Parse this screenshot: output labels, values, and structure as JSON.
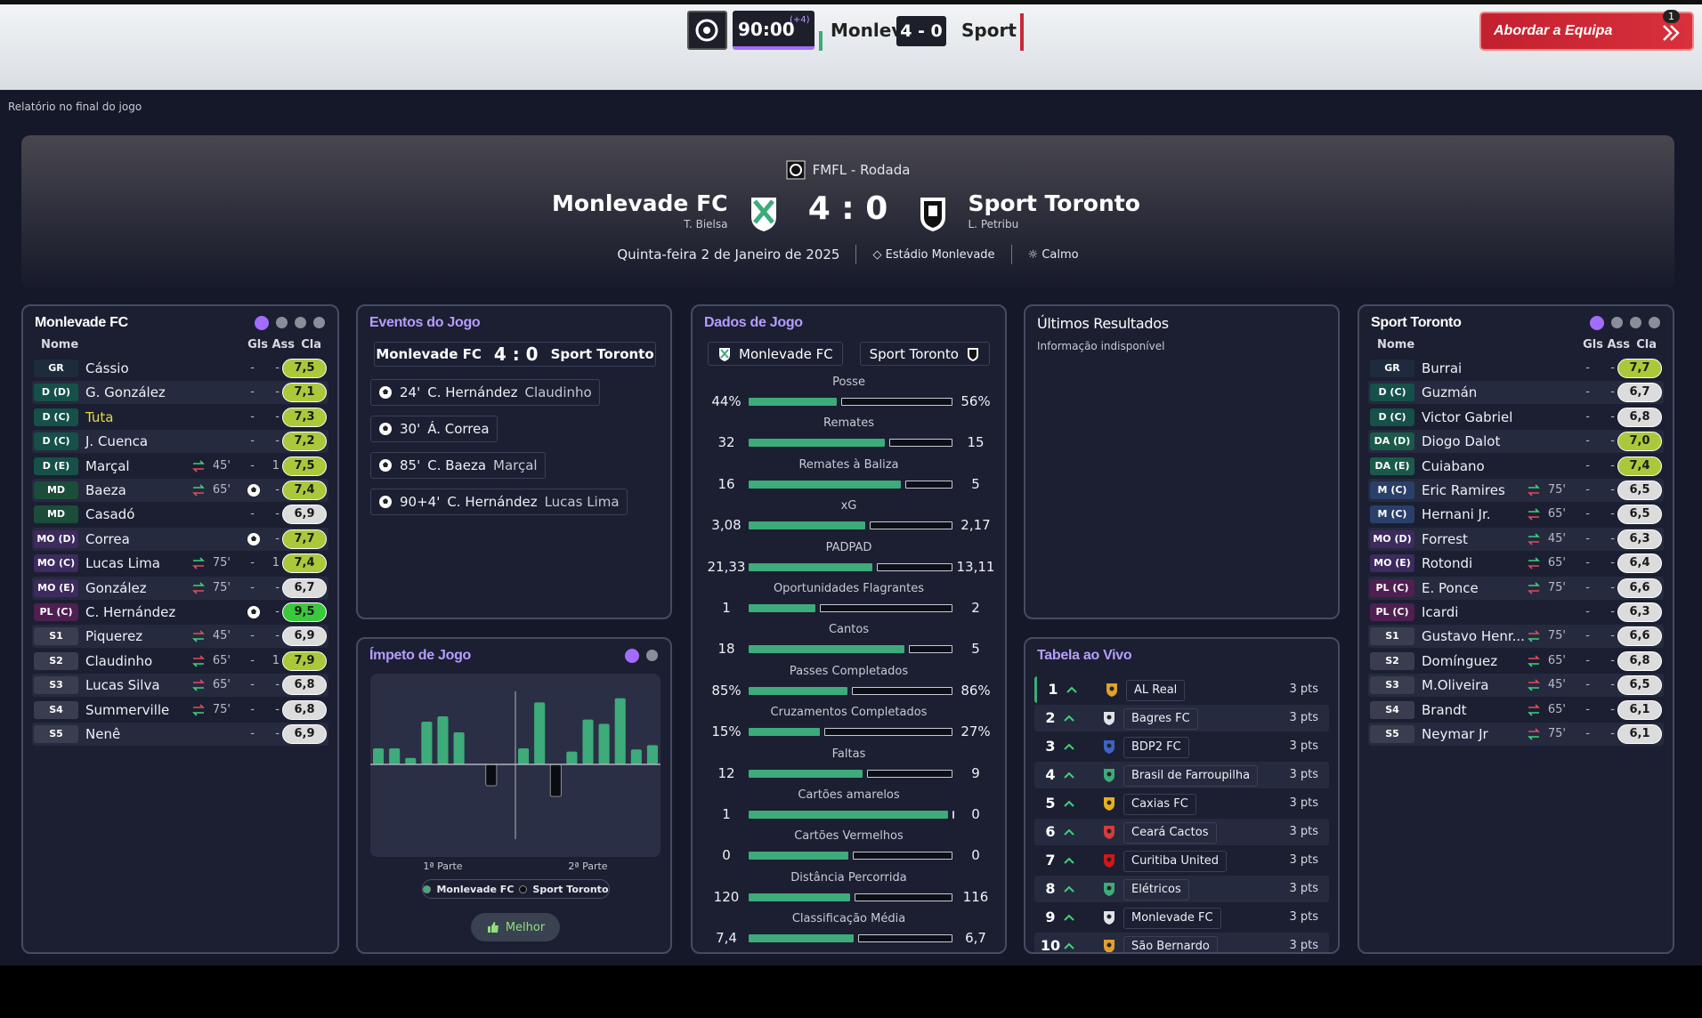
{
  "topbar": {
    "time": "90:00",
    "added": "(+4)",
    "home": "Monlev",
    "score": "4 - 0",
    "away": "Sport",
    "button": "Abordar a Equipa",
    "badge": "1"
  },
  "report_label": "Relatório no final do jogo",
  "header": {
    "competition": "FMFL - Rodada",
    "home": "Monlevade FC",
    "home_manager": "T. Bielsa",
    "score": "4 : 0",
    "away": "Sport Toronto",
    "away_manager": "L. Petribu",
    "date": "Quinta-feira 2 de Janeiro de 2025",
    "stadium": "Estádio Monlevade",
    "weather": "Calmo"
  },
  "columns": [
    "Nome",
    "Gls",
    "Ass",
    "Cla"
  ],
  "home_team": {
    "players": [
      {
        "pos": "GR",
        "name": "Cássio",
        "sub": null,
        "gls": "-",
        "ass": "-",
        "rating": "7,5"
      },
      {
        "pos": "D (D)",
        "name": "G. González",
        "sub": null,
        "gls": "-",
        "ass": "-",
        "rating": "7,1"
      },
      {
        "pos": "D (C)",
        "name": "Tuta",
        "name_color": "#e6d84a",
        "sub": null,
        "gls": "-",
        "ass": "-",
        "rating": "7,3"
      },
      {
        "pos": "D (C)",
        "name": "J. Cuenca",
        "sub": null,
        "gls": "-",
        "ass": "-",
        "rating": "7,2"
      },
      {
        "pos": "D (E)",
        "name": "Marçal",
        "sub": "45'",
        "gls": "-",
        "ass": "1",
        "rating": "7,5"
      },
      {
        "pos": "MD",
        "name": "Baeza",
        "sub": "65'",
        "gls": null,
        "ass": "-",
        "rating": "7,4"
      },
      {
        "pos": "MD",
        "name": "Casadó",
        "sub": null,
        "gls": "-",
        "ass": "-",
        "rating": "6,9"
      },
      {
        "pos": "MO (D)",
        "name": "Correa",
        "sub": null,
        "gls": null,
        "ass": "-",
        "rating": "7,7"
      },
      {
        "pos": "MO (C)",
        "name": "Lucas Lima",
        "sub": "75'",
        "gls": "-",
        "ass": "1",
        "rating": "7,4"
      },
      {
        "pos": "MO (E)",
        "name": "González",
        "sub": "75'",
        "gls": "-",
        "ass": "-",
        "rating": "6,7"
      },
      {
        "pos": "PL (C)",
        "name": "C. Hernández",
        "sub": null,
        "gls": null,
        "ass": "-",
        "rating": "9,5"
      },
      {
        "pos": "S1",
        "name": "Piquerez",
        "sub": "45'",
        "gls": "-",
        "ass": "-",
        "rating": "6,9"
      },
      {
        "pos": "S2",
        "name": "Claudinho",
        "sub": "65'",
        "gls": "-",
        "ass": "1",
        "rating": "7,9"
      },
      {
        "pos": "S3",
        "name": "Lucas Silva",
        "sub": "65'",
        "gls": "-",
        "ass": "-",
        "rating": "6,8"
      },
      {
        "pos": "S4",
        "name": "Summerville",
        "sub": "75'",
        "gls": "-",
        "ass": "-",
        "rating": "6,8"
      },
      {
        "pos": "S5",
        "name": "Nenê",
        "sub": null,
        "gls": "-",
        "ass": "-",
        "rating": "6,9"
      }
    ]
  },
  "away_team": {
    "players": [
      {
        "pos": "GR",
        "name": "Burrai",
        "sub": null,
        "gls": "-",
        "ass": "-",
        "rating": "7,7"
      },
      {
        "pos": "D (C)",
        "name": "Guzmán",
        "sub": null,
        "gls": "-",
        "ass": "-",
        "rating": "6,7"
      },
      {
        "pos": "D (C)",
        "name": "Victor Gabriel",
        "sub": null,
        "gls": "-",
        "ass": "-",
        "rating": "6,8"
      },
      {
        "pos": "DA (D)",
        "name": "Diogo Dalot",
        "sub": null,
        "gls": "-",
        "ass": "-",
        "rating": "7,0"
      },
      {
        "pos": "DA (E)",
        "name": "Cuiabano",
        "sub": null,
        "gls": "-",
        "ass": "-",
        "rating": "7,4"
      },
      {
        "pos": "M (C)",
        "name": "Eric Ramires",
        "sub": "75'",
        "gls": "-",
        "ass": "-",
        "rating": "6,5"
      },
      {
        "pos": "M (C)",
        "name": "Hernani Jr.",
        "sub": "65'",
        "gls": "-",
        "ass": "-",
        "rating": "6,5"
      },
      {
        "pos": "MO (D)",
        "name": "Forrest",
        "sub": "45'",
        "gls": "-",
        "ass": "-",
        "rating": "6,3"
      },
      {
        "pos": "MO (E)",
        "name": "Rotondi",
        "sub": "65'",
        "gls": "-",
        "ass": "-",
        "rating": "6,4"
      },
      {
        "pos": "PL (C)",
        "name": "E. Ponce",
        "sub": "75'",
        "gls": "-",
        "ass": "-",
        "rating": "6,6"
      },
      {
        "pos": "PL (C)",
        "name": "Icardi",
        "sub": null,
        "gls": "-",
        "ass": "-",
        "rating": "6,3"
      },
      {
        "pos": "S1",
        "name": "Gustavo Henr...",
        "sub": "75'",
        "gls": "-",
        "ass": "-",
        "rating": "6,6"
      },
      {
        "pos": "S2",
        "name": "Domínguez",
        "sub": "65'",
        "gls": "-",
        "ass": "-",
        "rating": "6,8"
      },
      {
        "pos": "S3",
        "name": "M.Oliveira",
        "sub": "45'",
        "gls": "-",
        "ass": "-",
        "rating": "6,5"
      },
      {
        "pos": "S4",
        "name": "Brandt",
        "sub": "65'",
        "gls": "-",
        "ass": "-",
        "rating": "6,1"
      },
      {
        "pos": "S5",
        "name": "Neymar Jr",
        "sub": "75'",
        "gls": "-",
        "ass": "-",
        "rating": "6,1"
      }
    ]
  },
  "events": {
    "title": "Eventos do Jogo",
    "items": [
      {
        "minute": "24'",
        "scorer": "C. Hernández",
        "assist": "Claudinho"
      },
      {
        "minute": "30'",
        "scorer": "Á. Correa",
        "assist": null
      },
      {
        "minute": "85'",
        "scorer": "C. Baeza",
        "assist": "Marçal"
      },
      {
        "minute": "90+4'",
        "scorer": "C. Hernández",
        "assist": "Lucas Lima"
      }
    ]
  },
  "stats": {
    "title": "Dados de Jogo",
    "rows": [
      {
        "label": "Posse",
        "home": 44,
        "home_label": "44%",
        "away": 56,
        "away_label": "56%"
      },
      {
        "label": "Remates",
        "home": 32,
        "away": 15
      },
      {
        "label": "Remates à Baliza",
        "home": 16,
        "away": 5
      },
      {
        "label": "xG",
        "home": 3.08,
        "home_label": "3,08",
        "away": 2.17,
        "away_label": "2,17"
      },
      {
        "label": "PADPAD",
        "home": 21.33,
        "home_label": "21,33",
        "away": 13.11,
        "away_label": "13,11"
      },
      {
        "label": "Oportunidades Flagrantes",
        "home": 1,
        "away": 2
      },
      {
        "label": "Cantos",
        "home": 18,
        "away": 5
      },
      {
        "label": "Passes Completados",
        "home": 85,
        "home_label": "85%",
        "away": 86,
        "away_label": "86%"
      },
      {
        "label": "Cruzamentos Completados",
        "home": 15,
        "home_label": "15%",
        "away": 27,
        "away_label": "27%"
      },
      {
        "label": "Faltas",
        "home": 12,
        "away": 9
      },
      {
        "label": "Cartões amarelos",
        "home": 1,
        "away": 0
      },
      {
        "label": "Cartões Vermelhos",
        "home": 0,
        "away": 0
      },
      {
        "label": "Distância Percorrida",
        "home": 120,
        "away": 116
      },
      {
        "label": "Classificação Média",
        "home": 7.4,
        "home_label": "7,4",
        "away": 6.7,
        "away_label": "6,7"
      }
    ]
  },
  "momentum": {
    "title": "Ímpeto de Jogo",
    "type": "bar",
    "ylim": [
      -80,
      80
    ],
    "values": [
      15,
      15,
      6,
      40,
      45,
      30,
      0,
      -20,
      0,
      15,
      58,
      -30,
      12,
      42,
      38,
      62,
      14,
      18
    ],
    "home_color": "#3dab7a",
    "away_color": "#0b0c12",
    "halves": [
      "1ª Parte",
      "2ª Parte"
    ],
    "button": "Melhor"
  },
  "results": {
    "title": "Últimos Resultados",
    "text": "Informação indisponível"
  },
  "table": {
    "title": "Tabela ao Vivo",
    "rows": [
      {
        "pos": 1,
        "team": "AL Real",
        "pts": "3 pts"
      },
      {
        "pos": 2,
        "team": "Bagres FC",
        "pts": "3 pts"
      },
      {
        "pos": 3,
        "team": "BDP2 FC",
        "pts": "3 pts"
      },
      {
        "pos": 4,
        "team": "Brasil de Farroupilha",
        "pts": "3 pts"
      },
      {
        "pos": 5,
        "team": "Caxias FC",
        "pts": "3 pts"
      },
      {
        "pos": 6,
        "team": "Ceará Cactos",
        "pts": "3 pts"
      },
      {
        "pos": 7,
        "team": "Curitiba United",
        "pts": "3 pts"
      },
      {
        "pos": 8,
        "team": "Elétricos",
        "pts": "3 pts"
      },
      {
        "pos": 9,
        "team": "Monlevade FC",
        "pts": "3 pts"
      },
      {
        "pos": 10,
        "team": "São Bernardo",
        "pts": "3 pts"
      }
    ]
  }
}
